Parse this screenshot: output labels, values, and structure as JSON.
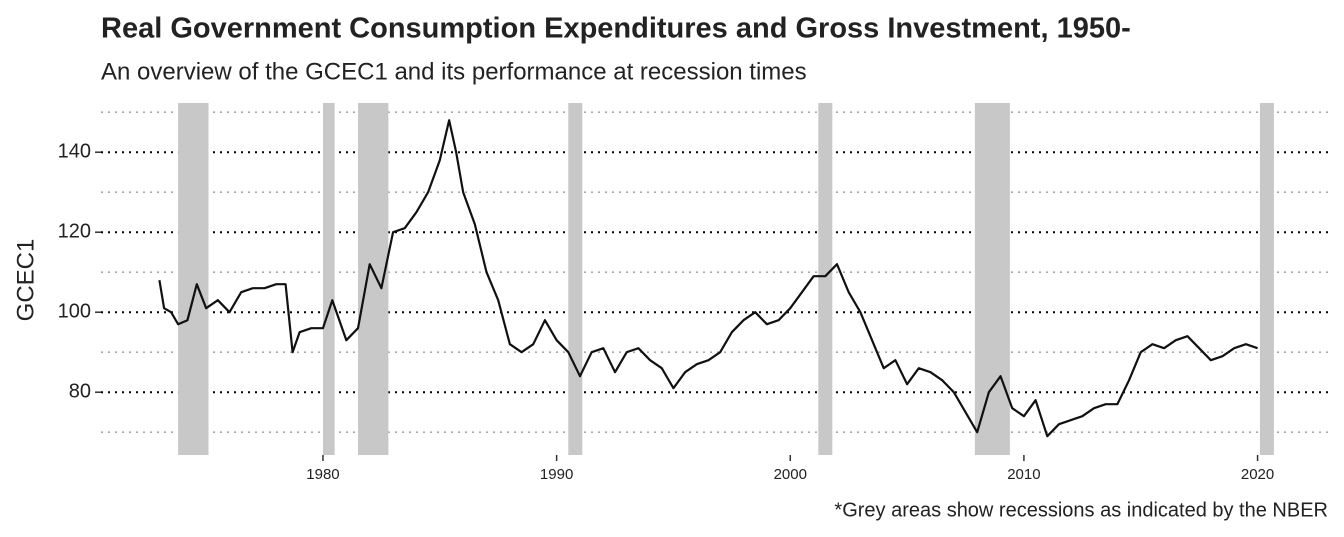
{
  "chart_data": {
    "type": "line",
    "title": "Real Government Consumption Expenditures and Gross Investment, 1950-",
    "subtitle": "An overview of the GCEC1 and its performance at recession times",
    "y_label": "GCEC1",
    "caption": "*Grey areas show recessions as indicated by the NBER",
    "x": [
      1973.0,
      1973.2,
      1973.5,
      1973.8,
      1974.2,
      1974.6,
      1975.0,
      1975.5,
      1976.0,
      1976.5,
      1977.0,
      1977.5,
      1978.0,
      1978.4,
      1978.7,
      1979.0,
      1979.5,
      1980.0,
      1980.4,
      1981.0,
      1981.5,
      1982.0,
      1982.5,
      1983.0,
      1983.5,
      1984.0,
      1984.5,
      1985.0,
      1985.4,
      1985.7,
      1986.0,
      1986.5,
      1987.0,
      1987.5,
      1988.0,
      1988.5,
      1989.0,
      1989.5,
      1990.0,
      1990.5,
      1991.0,
      1991.5,
      1992.0,
      1992.5,
      1993.0,
      1993.5,
      1994.0,
      1994.5,
      1995.0,
      1995.5,
      1996.0,
      1996.5,
      1997.0,
      1997.5,
      1998.0,
      1998.5,
      1999.0,
      1999.5,
      2000.0,
      2000.5,
      2001.0,
      2001.5,
      2002.0,
      2002.5,
      2003.0,
      2003.5,
      2004.0,
      2004.5,
      2005.0,
      2005.5,
      2006.0,
      2006.5,
      2007.0,
      2007.5,
      2008.0,
      2008.5,
      2009.0,
      2009.5,
      2010.0,
      2010.5,
      2011.0,
      2011.5,
      2012.0,
      2012.5,
      2013.0,
      2013.5,
      2014.0,
      2014.5,
      2015.0,
      2015.5,
      2016.0,
      2016.5,
      2017.0,
      2017.5,
      2018.0,
      2018.5,
      2019.0,
      2019.5,
      2020.0
    ],
    "series": [
      {
        "name": "GCEC1",
        "color": "#111111",
        "values": [
          108,
          101,
          100,
          97,
          98,
          107,
          101,
          103,
          100,
          105,
          106,
          106,
          107,
          107,
          90,
          95,
          96,
          96,
          103,
          93,
          96,
          112,
          106,
          120,
          121,
          125,
          130,
          138,
          148,
          140,
          130,
          122,
          110,
          103,
          92,
          90,
          92,
          98,
          93,
          90,
          84,
          90,
          91,
          85,
          90,
          91,
          88,
          86,
          81,
          85,
          87,
          88,
          90,
          95,
          98,
          100,
          97,
          98,
          101,
          105,
          109,
          109,
          112,
          105,
          100,
          93,
          86,
          88,
          82,
          86,
          85,
          83,
          80,
          75,
          70,
          80,
          84,
          76,
          74,
          78,
          69,
          72,
          73,
          74,
          76,
          77,
          77,
          83,
          90,
          92,
          91,
          93,
          94,
          91,
          88,
          89,
          91,
          92,
          91
        ]
      }
    ],
    "recessions": [
      [
        1973.8,
        1975.1
      ],
      [
        1980.0,
        1980.5
      ],
      [
        1981.5,
        1982.8
      ],
      [
        1990.5,
        1991.1
      ],
      [
        2001.2,
        2001.8
      ],
      [
        2007.9,
        2009.4
      ],
      [
        2020.1,
        2020.7
      ]
    ],
    "xlim": [
      1970.5,
      2023.1
    ],
    "xticks": [
      1980,
      1990,
      2000,
      2010,
      2020
    ],
    "ylim": [
      64.3,
      152.3
    ],
    "yticks": [
      80,
      100,
      120,
      140
    ],
    "minor_yticks": [
      70,
      90,
      110,
      130,
      150
    ],
    "grid": true
  }
}
